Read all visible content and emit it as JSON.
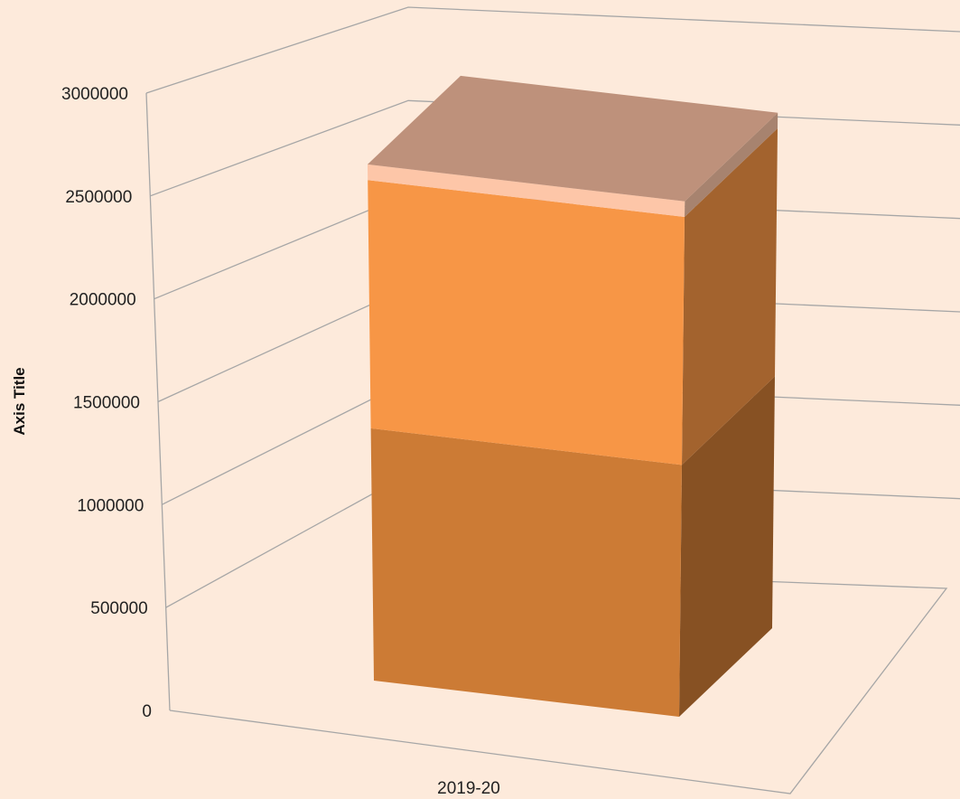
{
  "background_color": "#FDEADB",
  "chart_data": {
    "type": "bar",
    "style": "3d-stacked-column",
    "categories": [
      "2019-20"
    ],
    "series": [
      {
        "values": [
          1290000
        ],
        "color": "#CC7B35"
      },
      {
        "values": [
          1270000
        ],
        "color": "#F79646"
      },
      {
        "values": [
          80000
        ],
        "color": "#FDC6A8"
      }
    ],
    "xlabel": "",
    "ylabel": "Axis Title",
    "ylim": [
      0,
      3000000
    ],
    "y_ticks": [
      "0",
      "500000",
      "1000000",
      "1500000",
      "2000000",
      "2500000",
      "3000000"
    ],
    "grid": true,
    "legend": "none",
    "grid_color": "#A6A6A6",
    "top_face_color": "#BE917B"
  }
}
